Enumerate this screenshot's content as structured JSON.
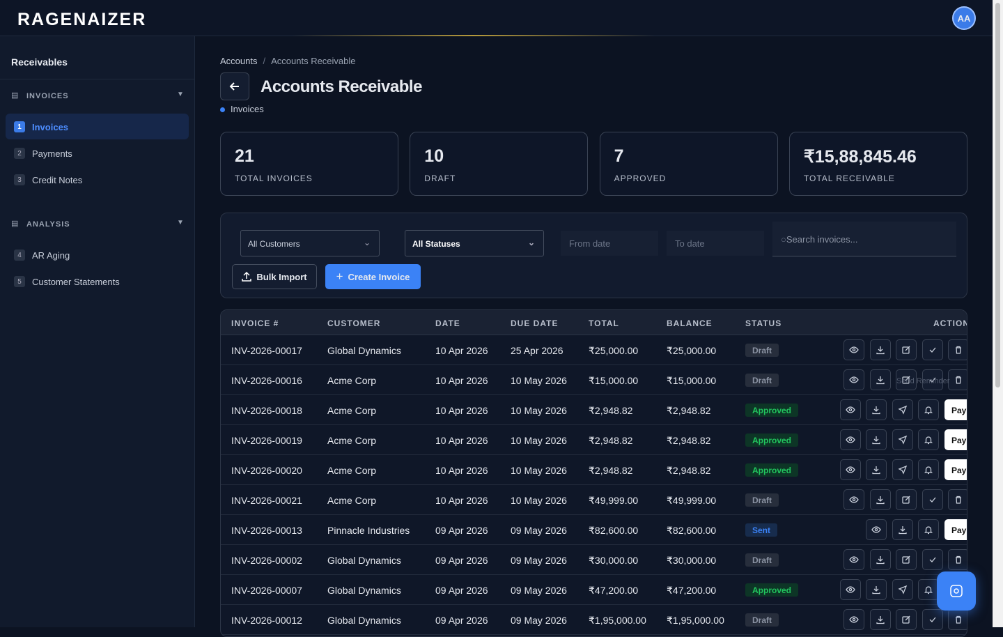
{
  "header": {
    "logo": "RAGENAIZER",
    "avatar": "AA"
  },
  "sidebar": {
    "title": "Receivables",
    "sections": [
      {
        "label": "INVOICES",
        "items": [
          {
            "number": "1",
            "label": "Invoices"
          },
          {
            "number": "2",
            "label": "Payments"
          },
          {
            "number": "3",
            "label": "Credit Notes"
          }
        ]
      },
      {
        "label": "ANALYSIS",
        "items": [
          {
            "number": "4",
            "label": "AR Aging"
          },
          {
            "number": "5",
            "label": "Customer Statements"
          }
        ]
      }
    ]
  },
  "breadcrumb": [
    "Accounts",
    "Accounts Receivable"
  ],
  "page": {
    "title": "Accounts Receivable",
    "subtitle": "Invoices"
  },
  "stats": [
    {
      "value": "21",
      "label": "TOTAL INVOICES"
    },
    {
      "value": "10",
      "label": "DRAFT"
    },
    {
      "value": "7",
      "label": "APPROVED"
    },
    {
      "value": "₹15,88,845.46",
      "label": "TOTAL RECEIVABLE"
    }
  ],
  "filters": {
    "customer": "All Customers",
    "status": "All Statuses",
    "from": "From date",
    "to": "To date",
    "search": "Search invoices...",
    "bulk_import": "Bulk Import",
    "create": "Create Invoice"
  },
  "table": {
    "columns": [
      "INVOICE #",
      "CUSTOMER",
      "DATE",
      "DUE DATE",
      "TOTAL",
      "BALANCE",
      "STATUS",
      "ACTION"
    ],
    "pay_label": "Pay",
    "tooltip": "Send Reminder",
    "rows": [
      [
        "INV-2026-00017",
        "Global Dynamics",
        "10 Apr 2026",
        "25 Apr 2026",
        "₹25,000.00",
        "₹25,000.00",
        "Draft"
      ],
      [
        "INV-2026-00016",
        "Acme Corp",
        "10 Apr 2026",
        "10 May 2026",
        "₹15,000.00",
        "₹15,000.00",
        "Draft"
      ],
      [
        "INV-2026-00018",
        "Acme Corp",
        "10 Apr 2026",
        "10 May 2026",
        "₹2,948.82",
        "₹2,948.82",
        "Approved"
      ],
      [
        "INV-2026-00019",
        "Acme Corp",
        "10 Apr 2026",
        "10 May 2026",
        "₹2,948.82",
        "₹2,948.82",
        "Approved"
      ],
      [
        "INV-2026-00020",
        "Acme Corp",
        "10 Apr 2026",
        "10 May 2026",
        "₹2,948.82",
        "₹2,948.82",
        "Approved"
      ],
      [
        "INV-2026-00021",
        "Acme Corp",
        "10 Apr 2026",
        "10 May 2026",
        "₹49,999.00",
        "₹49,999.00",
        "Draft"
      ],
      [
        "INV-2026-00013",
        "Pinnacle Industries",
        "09 Apr 2026",
        "09 May 2026",
        "₹82,600.00",
        "₹82,600.00",
        "Sent"
      ],
      [
        "INV-2026-00002",
        "Global Dynamics",
        "09 Apr 2026",
        "09 May 2026",
        "₹30,000.00",
        "₹30,000.00",
        "Draft"
      ],
      [
        "INV-2026-00007",
        "Global Dynamics",
        "09 Apr 2026",
        "09 May 2026",
        "₹47,200.00",
        "₹47,200.00",
        "Approved"
      ],
      [
        "INV-2026-00012",
        "Global Dynamics",
        "09 Apr 2026",
        "09 May 2026",
        "₹1,95,000.00",
        "₹1,95,000.00",
        "Draft"
      ]
    ]
  }
}
